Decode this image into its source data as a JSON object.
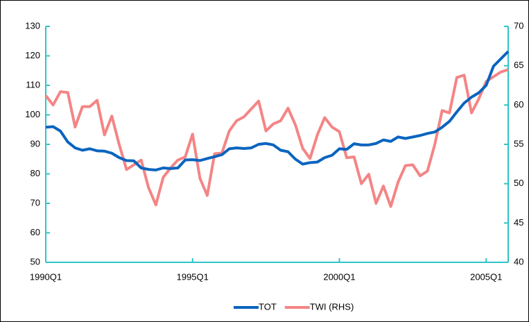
{
  "chart_data": {
    "type": "line",
    "categories": [
      "1990Q1",
      null,
      null,
      null,
      null,
      null,
      null,
      null,
      null,
      null,
      null,
      null,
      null,
      null,
      null,
      null,
      null,
      null,
      null,
      null,
      "1995Q1",
      null,
      null,
      null,
      null,
      null,
      null,
      null,
      null,
      null,
      null,
      null,
      null,
      null,
      null,
      null,
      null,
      null,
      null,
      null,
      "2000Q1",
      null,
      null,
      null,
      null,
      null,
      null,
      null,
      null,
      null,
      null,
      null,
      null,
      null,
      null,
      null,
      null,
      null,
      null,
      null,
      "2005Q1",
      null,
      null,
      null
    ],
    "series": [
      {
        "name": "TOT",
        "color": "#0a64bf",
        "values": [
          95.8,
          96,
          94.5,
          90.8,
          88.8,
          88,
          88.5,
          87.8,
          87.7,
          87,
          85.5,
          84.5,
          84.4,
          82,
          81.5,
          81.3,
          82,
          81.8,
          82,
          84.7,
          84.8,
          84.5,
          85.2,
          85.8,
          86.5,
          88.5,
          88.8,
          88.6,
          88.8,
          90,
          90.3,
          89.8,
          88,
          87.5,
          85,
          83.3,
          83.8,
          84,
          85.5,
          86.3,
          88.5,
          88.3,
          90.2,
          89.8,
          89.8,
          90.3,
          91.5,
          91,
          92.5,
          92,
          92.5,
          93,
          93.7,
          94.2,
          95.8,
          97.8,
          101,
          104,
          106,
          107.5,
          110,
          116.5,
          119,
          121.5
        ]
      },
      {
        "name": "TWI (RHS)",
        "color": "#f48585",
        "axis": "y2",
        "values": [
          61.2,
          60,
          61.7,
          61.6,
          57.2,
          59.8,
          59.8,
          60.6,
          56.2,
          58.6,
          55,
          51.8,
          52.4,
          53,
          49.5,
          47.3,
          50.8,
          52,
          53,
          53.4,
          56.3,
          50.7,
          48.5,
          53.8,
          53.9,
          56.7,
          58,
          58.5,
          59.5,
          60.5,
          56.7,
          57.6,
          58,
          59.6,
          57.5,
          54.5,
          53.2,
          56.2,
          58.4,
          57.2,
          56.6,
          53.3,
          53.4,
          50,
          51.2,
          47.5,
          49.7,
          47.1,
          50.2,
          52.3,
          52.4,
          51,
          51.6,
          55,
          59.3,
          59,
          63.5,
          63.8,
          59,
          60.8,
          63,
          63.6,
          64.2,
          64.5
        ]
      }
    ],
    "ylim": [
      50,
      130
    ],
    "yticks": [
      50,
      60,
      70,
      80,
      90,
      100,
      110,
      120,
      130
    ],
    "y2lim": [
      40,
      70
    ],
    "y2ticks": [
      40,
      45,
      50,
      55,
      60,
      65,
      70
    ],
    "axis_color": "#2ec4c4",
    "legend": "bottom"
  }
}
